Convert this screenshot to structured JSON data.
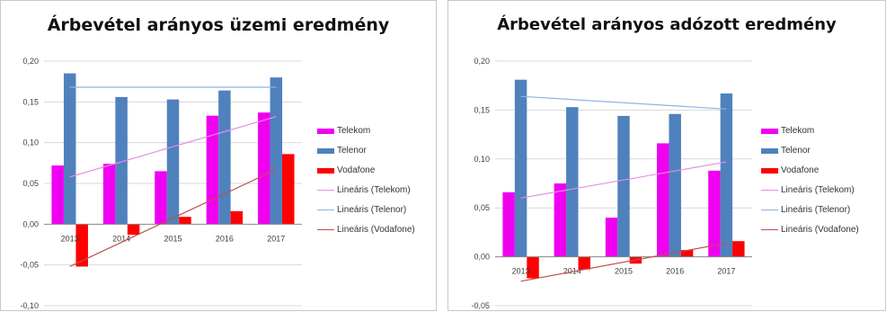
{
  "colors": {
    "Telekom": "#f000f0",
    "Telenor": "#4f81bd",
    "Vodafone": "#ff0000",
    "trend_Telekom": "#e58ee5",
    "trend_Telenor": "#8db4e2",
    "trend_Vodafone": "#c0504d",
    "grid": "#d9d9d9",
    "axis": "#868686"
  },
  "chart_data": [
    {
      "type": "bar",
      "title": "Árbevétel arányos üzemi eredmény",
      "categories": [
        "2013",
        "2014",
        "2015",
        "2016",
        "2017"
      ],
      "series": [
        {
          "name": "Telekom",
          "values": [
            0.072,
            0.074,
            0.065,
            0.133,
            0.137
          ]
        },
        {
          "name": "Telenor",
          "values": [
            0.185,
            0.156,
            0.153,
            0.164,
            0.18
          ]
        },
        {
          "name": "Vodafone",
          "values": [
            -0.052,
            -0.013,
            0.009,
            0.016,
            0.086
          ]
        }
      ],
      "trendlines": [
        {
          "name": "Lineáris (Telekom)",
          "series": "Telekom",
          "start": 0.058,
          "end": 0.132
        },
        {
          "name": "Lineáris (Telenor)",
          "series": "Telenor",
          "start": 0.168,
          "end": 0.168
        },
        {
          "name": "Lineáris (Vodafone)",
          "series": "Vodafone",
          "start": -0.052,
          "end": 0.067
        }
      ],
      "ylim": [
        -0.1,
        0.2
      ],
      "yticks": [
        "0,20",
        "0,15",
        "0,10",
        "0,05",
        "0,00",
        "-0,05",
        "-0,10"
      ],
      "ytick_values": [
        0.2,
        0.15,
        0.1,
        0.05,
        0.0,
        -0.05,
        -0.1
      ],
      "grid": true,
      "legend_position": "right",
      "legend": [
        "Telekom",
        "Telenor",
        "Vodafone",
        "Lineáris (Telekom)",
        "Lineáris (Telenor)",
        "Lineáris (Vodafone)"
      ]
    },
    {
      "type": "bar",
      "title": "Árbevétel arányos adózott eredmény",
      "categories": [
        "2013",
        "2014",
        "2015",
        "2016",
        "2017"
      ],
      "series": [
        {
          "name": "Telekom",
          "values": [
            0.066,
            0.075,
            0.04,
            0.116,
            0.088
          ]
        },
        {
          "name": "Telenor",
          "values": [
            0.181,
            0.153,
            0.144,
            0.146,
            0.167
          ]
        },
        {
          "name": "Vodafone",
          "values": [
            -0.022,
            -0.013,
            -0.007,
            0.007,
            0.016
          ]
        }
      ],
      "trendlines": [
        {
          "name": "Lineáris (Telekom)",
          "series": "Telekom",
          "start": 0.06,
          "end": 0.097
        },
        {
          "name": "Lineáris (Telenor)",
          "series": "Telenor",
          "start": 0.164,
          "end": 0.151
        },
        {
          "name": "Lineáris (Vodafone)",
          "series": "Vodafone",
          "start": -0.025,
          "end": 0.014
        }
      ],
      "ylim": [
        -0.05,
        0.2
      ],
      "yticks": [
        "0,20",
        "0,15",
        "0,10",
        "0,05",
        "0,00",
        "-0,05"
      ],
      "ytick_values": [
        0.2,
        0.15,
        0.1,
        0.05,
        0.0,
        -0.05
      ],
      "grid": true,
      "legend_position": "right",
      "legend": [
        "Telekom",
        "Telenor",
        "Vodafone",
        "Lineáris (Telekom)",
        "Lineáris (Telenor)",
        "Lineáris (Vodafone)"
      ]
    }
  ]
}
